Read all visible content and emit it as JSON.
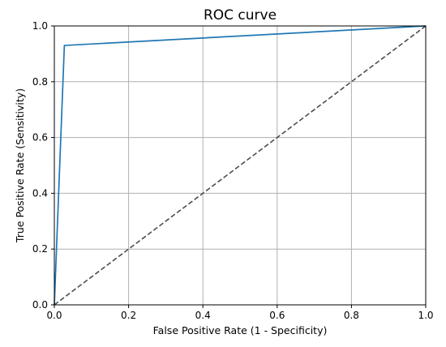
{
  "chart_data": {
    "type": "line",
    "title": "ROC curve",
    "xlabel": "False Positive Rate (1 - Specificity)",
    "ylabel": "True Positive Rate (Sensitivity)",
    "xlim": [
      0.0,
      1.0
    ],
    "ylim": [
      0.0,
      1.0
    ],
    "xticks": [
      "0.0",
      "0.2",
      "0.4",
      "0.6",
      "0.8",
      "1.0"
    ],
    "yticks": [
      "0.0",
      "0.2",
      "0.4",
      "0.6",
      "0.8",
      "1.0"
    ],
    "grid": true,
    "series": [
      {
        "x": [
          0.0,
          0.027,
          1.0
        ],
        "y": [
          0.0,
          0.93,
          1.0
        ],
        "color": "#1f77b4",
        "style": "solid"
      },
      {
        "x": [
          0.0,
          1.0
        ],
        "y": [
          0.0,
          1.0
        ],
        "color": "#4d4d4d",
        "style": "dashed"
      }
    ]
  }
}
